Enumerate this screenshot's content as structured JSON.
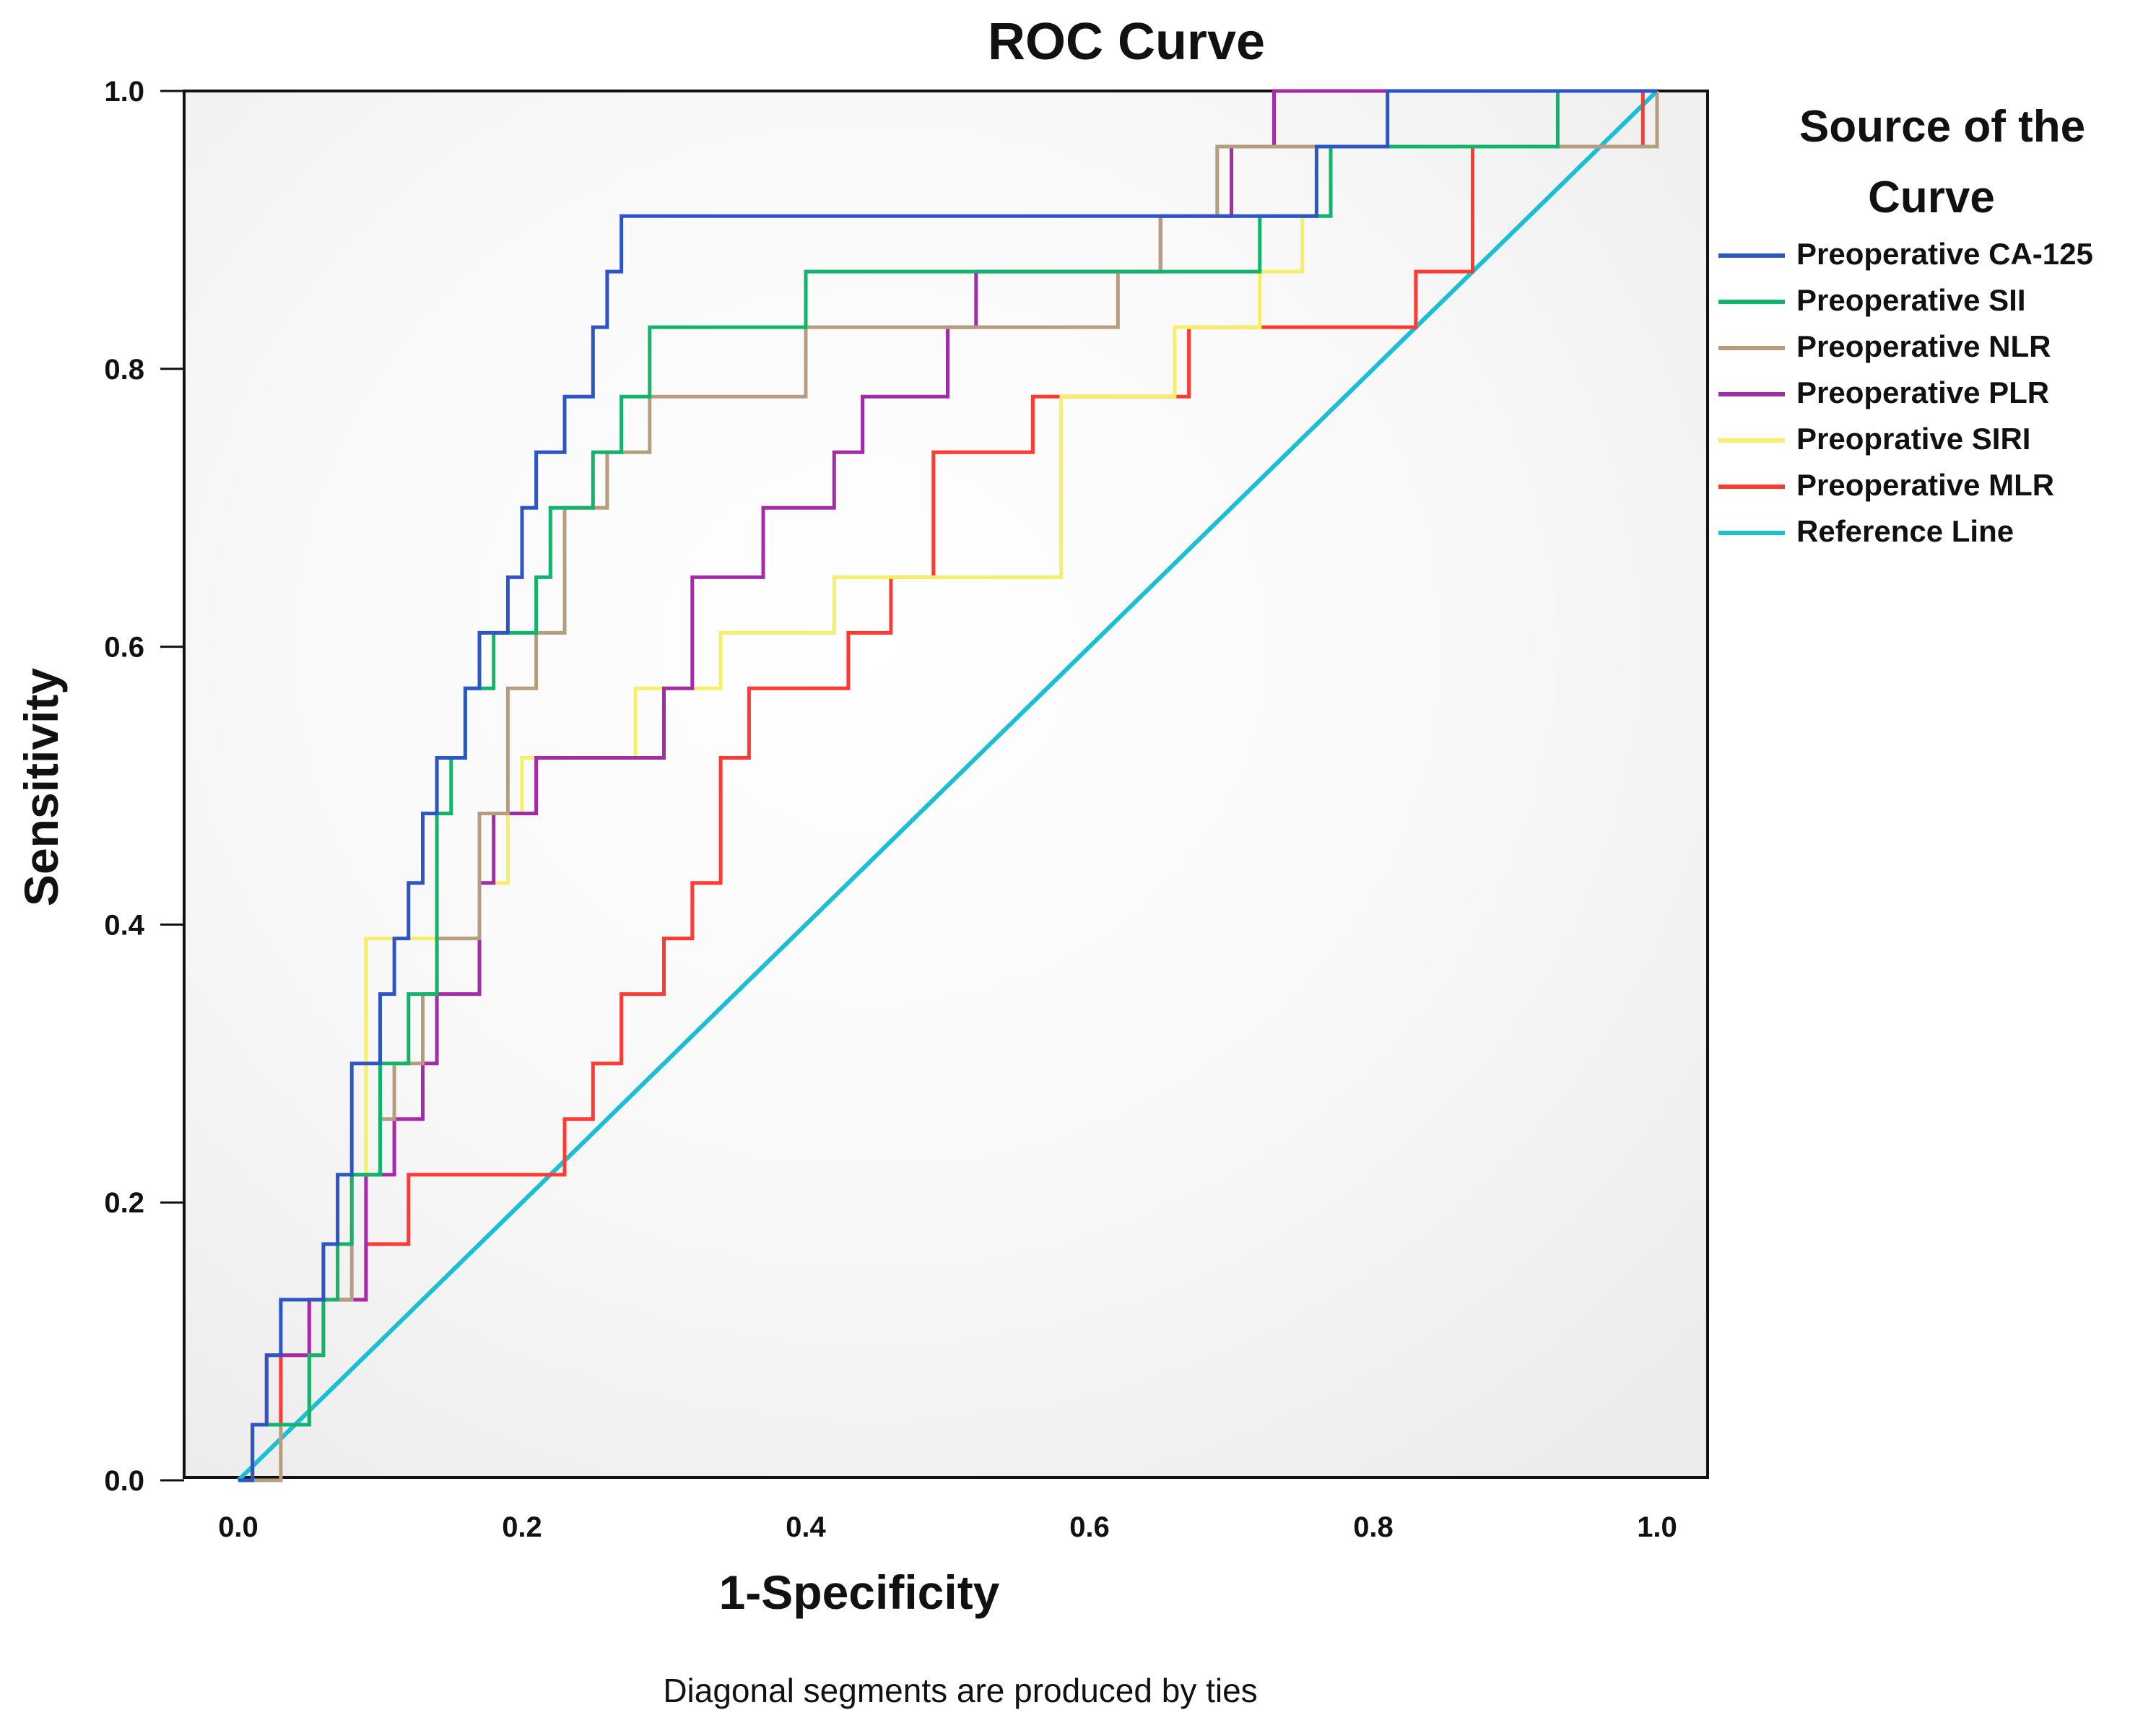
{
  "chart_data": {
    "type": "line",
    "title": "ROC Curve",
    "xlabel": "1-Specificity",
    "ylabel": "Sensitivity",
    "xlim": [
      0,
      1
    ],
    "ylim": [
      0,
      1
    ],
    "xticks": [
      "0.0",
      "0.2",
      "0.4",
      "0.6",
      "0.8",
      "1.0"
    ],
    "yticks": [
      "0.0",
      "0.2",
      "0.4",
      "0.6",
      "0.8",
      "1.0"
    ],
    "grid": false,
    "legend_title": "Source of the Curve",
    "legend_position": "right",
    "footnote": "Diagonal segments are produced by ties",
    "series": [
      {
        "name": "Preoperative CA-125",
        "color": "#2e55c4",
        "x": [
          0.0,
          0.01,
          0.01,
          0.02,
          0.02,
          0.03,
          0.03,
          0.06,
          0.06,
          0.07,
          0.07,
          0.08,
          0.08,
          0.1,
          0.1,
          0.11,
          0.11,
          0.12,
          0.12,
          0.13,
          0.13,
          0.14,
          0.14,
          0.16,
          0.16,
          0.17,
          0.17,
          0.19,
          0.19,
          0.2,
          0.2,
          0.21,
          0.21,
          0.23,
          0.23,
          0.25,
          0.25,
          0.26,
          0.26,
          0.27,
          0.27,
          0.28,
          0.28,
          0.3,
          0.3,
          0.32,
          0.32,
          0.4,
          0.4,
          0.42,
          0.42,
          0.66,
          0.66,
          0.76,
          0.76,
          0.81,
          0.81,
          1.0,
          1.0
        ],
        "y": [
          0.0,
          0.0,
          0.04,
          0.04,
          0.09,
          0.09,
          0.13,
          0.13,
          0.17,
          0.17,
          0.22,
          0.22,
          0.3,
          0.3,
          0.35,
          0.35,
          0.39,
          0.39,
          0.43,
          0.43,
          0.48,
          0.48,
          0.52,
          0.52,
          0.57,
          0.57,
          0.61,
          0.61,
          0.65,
          0.65,
          0.7,
          0.7,
          0.74,
          0.74,
          0.78,
          0.78,
          0.83,
          0.83,
          0.87,
          0.87,
          0.91,
          0.91,
          0.91,
          0.91,
          0.91,
          0.91,
          0.91,
          0.91,
          0.91,
          0.91,
          0.91,
          0.91,
          0.91,
          0.91,
          0.96,
          0.96,
          1.0,
          1.0,
          1.0
        ]
      },
      {
        "name": "Preoperative SII",
        "color": "#12b36b",
        "x": [
          0.0,
          0.01,
          0.01,
          0.02,
          0.02,
          0.05,
          0.05,
          0.06,
          0.06,
          0.07,
          0.07,
          0.08,
          0.08,
          0.1,
          0.1,
          0.12,
          0.12,
          0.14,
          0.14,
          0.15,
          0.15,
          0.16,
          0.16,
          0.18,
          0.18,
          0.21,
          0.21,
          0.22,
          0.22,
          0.25,
          0.25,
          0.27,
          0.27,
          0.29,
          0.29,
          0.3,
          0.3,
          0.4,
          0.4,
          0.44,
          0.44,
          0.63,
          0.63,
          0.72,
          0.72,
          0.74,
          0.74,
          0.77,
          0.77,
          0.93,
          0.93,
          1.0,
          1.0
        ],
        "y": [
          0.0,
          0.0,
          0.04,
          0.04,
          0.04,
          0.04,
          0.09,
          0.09,
          0.13,
          0.13,
          0.17,
          0.17,
          0.22,
          0.22,
          0.3,
          0.3,
          0.35,
          0.35,
          0.48,
          0.48,
          0.52,
          0.52,
          0.57,
          0.57,
          0.61,
          0.61,
          0.65,
          0.65,
          0.7,
          0.7,
          0.74,
          0.74,
          0.78,
          0.78,
          0.83,
          0.83,
          0.83,
          0.83,
          0.87,
          0.87,
          0.87,
          0.87,
          0.87,
          0.87,
          0.91,
          0.91,
          0.91,
          0.91,
          0.96,
          0.96,
          1.0,
          1.0,
          1.0
        ]
      },
      {
        "name": "Preoperative NLR",
        "color": "#b59d7e",
        "x": [
          0.0,
          0.03,
          0.03,
          0.05,
          0.05,
          0.06,
          0.06,
          0.08,
          0.08,
          0.1,
          0.1,
          0.11,
          0.11,
          0.13,
          0.13,
          0.14,
          0.14,
          0.17,
          0.17,
          0.19,
          0.19,
          0.21,
          0.21,
          0.23,
          0.23,
          0.26,
          0.26,
          0.29,
          0.29,
          0.31,
          0.31,
          0.4,
          0.4,
          0.43,
          0.43,
          0.45,
          0.45,
          0.62,
          0.62,
          0.65,
          0.65,
          0.69,
          0.69,
          0.71,
          0.71,
          0.93,
          0.93,
          1.0,
          1.0
        ],
        "y": [
          0.0,
          0.0,
          0.04,
          0.04,
          0.09,
          0.09,
          0.13,
          0.13,
          0.22,
          0.22,
          0.26,
          0.26,
          0.3,
          0.3,
          0.35,
          0.35,
          0.39,
          0.39,
          0.48,
          0.48,
          0.57,
          0.57,
          0.61,
          0.61,
          0.7,
          0.7,
          0.74,
          0.74,
          0.78,
          0.78,
          0.78,
          0.78,
          0.83,
          0.83,
          0.83,
          0.83,
          0.83,
          0.83,
          0.87,
          0.87,
          0.91,
          0.91,
          0.96,
          0.96,
          0.96,
          0.96,
          0.96,
          0.96,
          1.0
        ]
      },
      {
        "name": "Preoperative PLR",
        "color": "#a32ba8",
        "x": [
          0.0,
          0.01,
          0.01,
          0.02,
          0.02,
          0.05,
          0.05,
          0.07,
          0.07,
          0.09,
          0.09,
          0.11,
          0.11,
          0.13,
          0.13,
          0.14,
          0.14,
          0.17,
          0.17,
          0.18,
          0.18,
          0.21,
          0.21,
          0.3,
          0.3,
          0.32,
          0.32,
          0.37,
          0.37,
          0.42,
          0.42,
          0.44,
          0.44,
          0.49,
          0.49,
          0.5,
          0.5,
          0.52,
          0.52,
          0.65,
          0.65,
          0.7,
          0.7,
          0.73,
          0.73,
          0.94,
          0.94,
          1.0
        ],
        "y": [
          0.0,
          0.0,
          0.04,
          0.04,
          0.09,
          0.09,
          0.13,
          0.13,
          0.13,
          0.13,
          0.22,
          0.22,
          0.26,
          0.26,
          0.3,
          0.3,
          0.35,
          0.35,
          0.43,
          0.43,
          0.48,
          0.48,
          0.52,
          0.52,
          0.57,
          0.57,
          0.65,
          0.65,
          0.7,
          0.7,
          0.74,
          0.74,
          0.78,
          0.78,
          0.78,
          0.78,
          0.83,
          0.83,
          0.87,
          0.87,
          0.91,
          0.91,
          0.96,
          0.96,
          1.0,
          1.0,
          1.0,
          1.0
        ]
      },
      {
        "name": "Preoprative SIRI",
        "color": "#f5ef6a",
        "x": [
          0.0,
          0.03,
          0.03,
          0.05,
          0.05,
          0.07,
          0.07,
          0.09,
          0.09,
          0.1,
          0.1,
          0.17,
          0.17,
          0.19,
          0.19,
          0.2,
          0.2,
          0.28,
          0.28,
          0.34,
          0.34,
          0.42,
          0.42,
          0.54,
          0.54,
          0.58,
          0.58,
          0.66,
          0.66,
          0.72,
          0.72,
          0.75,
          0.75,
          0.76,
          0.76,
          0.81,
          0.81,
          1.0,
          1.0
        ],
        "y": [
          0.0,
          0.0,
          0.04,
          0.04,
          0.13,
          0.13,
          0.22,
          0.22,
          0.39,
          0.39,
          0.39,
          0.39,
          0.43,
          0.43,
          0.48,
          0.48,
          0.52,
          0.52,
          0.57,
          0.57,
          0.61,
          0.61,
          0.65,
          0.65,
          0.65,
          0.65,
          0.78,
          0.78,
          0.83,
          0.83,
          0.87,
          0.87,
          0.91,
          0.91,
          0.96,
          0.96,
          0.96,
          0.96,
          1.0
        ]
      },
      {
        "name": "Preoperative MLR",
        "color": "#ff3a33",
        "x": [
          0.0,
          0.01,
          0.01,
          0.03,
          0.03,
          0.05,
          0.05,
          0.07,
          0.07,
          0.09,
          0.09,
          0.12,
          0.12,
          0.16,
          0.16,
          0.23,
          0.23,
          0.25,
          0.25,
          0.27,
          0.27,
          0.3,
          0.3,
          0.32,
          0.32,
          0.34,
          0.34,
          0.36,
          0.36,
          0.43,
          0.43,
          0.46,
          0.46,
          0.49,
          0.49,
          0.56,
          0.56,
          0.59,
          0.59,
          0.67,
          0.67,
          0.83,
          0.83,
          0.87,
          0.87,
          0.95,
          0.95,
          0.99,
          0.99,
          1.0
        ],
        "y": [
          0.0,
          0.0,
          0.04,
          0.04,
          0.09,
          0.09,
          0.13,
          0.13,
          0.13,
          0.13,
          0.17,
          0.17,
          0.22,
          0.22,
          0.22,
          0.22,
          0.26,
          0.26,
          0.3,
          0.3,
          0.35,
          0.35,
          0.39,
          0.39,
          0.43,
          0.43,
          0.52,
          0.52,
          0.57,
          0.57,
          0.61,
          0.61,
          0.65,
          0.65,
          0.74,
          0.74,
          0.78,
          0.78,
          0.78,
          0.78,
          0.83,
          0.83,
          0.87,
          0.87,
          0.96,
          0.96,
          0.96,
          0.96,
          1.0,
          1.0
        ]
      },
      {
        "name": "Reference Line",
        "color": "#1bbfd4",
        "x": [
          0.0,
          1.0
        ],
        "y": [
          0.0,
          1.0
        ]
      }
    ]
  }
}
